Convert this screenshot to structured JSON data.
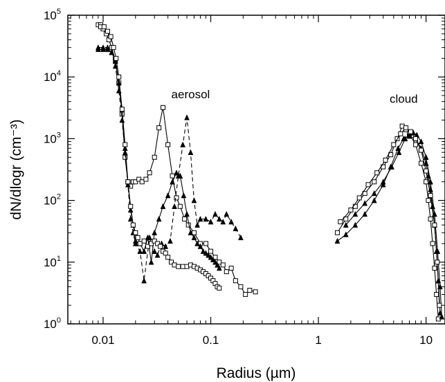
{
  "chart_data": {
    "type": "line",
    "xlabel": "Radius (µm)",
    "ylabel": "dN/dlogr (cm⁻³)",
    "x_scale": "log",
    "y_scale": "log",
    "xlim": [
      0.0047,
      15
    ],
    "ylim": [
      1,
      100000
    ],
    "x_ticks": [
      {
        "value": 0.01,
        "label": "0.01"
      },
      {
        "value": 0.1,
        "label": "0.1"
      },
      {
        "value": 1,
        "label": "1"
      },
      {
        "value": 10,
        "label": "10"
      }
    ],
    "y_ticks": [
      {
        "value": 1,
        "base": "10",
        "exp": "0"
      },
      {
        "value": 10,
        "base": "10",
        "exp": "1"
      },
      {
        "value": 100,
        "base": "10",
        "exp": "2"
      },
      {
        "value": 1000,
        "base": "10",
        "exp": "3"
      },
      {
        "value": 10000,
        "base": "10",
        "exp": "4"
      },
      {
        "value": 100000,
        "base": "10",
        "exp": "5"
      }
    ],
    "annotations": [
      {
        "text": "aerosol",
        "x": 0.065,
        "y": 4500
      },
      {
        "text": "cloud",
        "x": 6.2,
        "y": 3800
      }
    ],
    "series": [
      {
        "marker": "square",
        "dash": "solid",
        "x": [
          0.009,
          0.0095,
          0.01,
          0.0107,
          0.0113,
          0.012,
          0.013,
          0.014,
          0.015,
          0.016,
          0.017,
          0.018,
          0.019,
          0.02,
          0.0215,
          0.023,
          0.025,
          0.027,
          0.03,
          0.033,
          0.036,
          0.04,
          0.044,
          0.048,
          0.052,
          0.057,
          0.062,
          0.07,
          0.08,
          0.09,
          0.1,
          0.11,
          0.12,
          0.13,
          0.14,
          0.155,
          0.17,
          0.19,
          0.21,
          0.23,
          0.26
        ],
        "y": [
          70000,
          70000,
          60000,
          50000,
          40000,
          30000,
          18000,
          8000,
          2500,
          500,
          200,
          170,
          200,
          200,
          220,
          200,
          220,
          280,
          500,
          1500,
          3200,
          800,
          250,
          110,
          80,
          50,
          40,
          30,
          20,
          20,
          15,
          12,
          10,
          9,
          7,
          8,
          5,
          4,
          3,
          3.5,
          3.3
        ]
      },
      {
        "marker": "triangle",
        "dash": "dashed",
        "x": [
          0.009,
          0.01,
          0.011,
          0.012,
          0.013,
          0.014,
          0.015,
          0.016,
          0.017,
          0.018,
          0.019,
          0.02,
          0.022,
          0.024,
          0.027,
          0.03,
          0.032,
          0.035,
          0.038,
          0.042,
          0.046,
          0.05,
          0.055,
          0.06,
          0.065,
          0.07,
          0.075,
          0.08,
          0.09,
          0.1,
          0.11,
          0.12,
          0.13,
          0.14,
          0.155,
          0.17,
          0.19
        ],
        "y": [
          30000,
          30000,
          30000,
          25000,
          15000,
          6000,
          2000,
          600,
          180,
          50,
          30,
          20,
          15,
          5,
          25,
          15,
          13,
          20,
          18,
          22,
          80,
          250,
          800,
          2200,
          600,
          100,
          40,
          50,
          50,
          45,
          60,
          50,
          45,
          60,
          45,
          35,
          25
        ]
      },
      {
        "marker": "triangle",
        "dash": "solid",
        "x": [
          0.009,
          0.01,
          0.011,
          0.012,
          0.013,
          0.014,
          0.015,
          0.016,
          0.017,
          0.018,
          0.019,
          0.02,
          0.022,
          0.024,
          0.026,
          0.028,
          0.03,
          0.033,
          0.036,
          0.04,
          0.044,
          0.048,
          0.052,
          0.056,
          0.06,
          0.065,
          0.07,
          0.075,
          0.08,
          0.085,
          0.09,
          0.095,
          0.1,
          0.105,
          0.11,
          0.115,
          0.12
        ],
        "y": [
          28000,
          28000,
          28000,
          25000,
          18000,
          8000,
          3000,
          700,
          200,
          70,
          40,
          22,
          20,
          15,
          25,
          10,
          30,
          50,
          80,
          120,
          200,
          280,
          250,
          120,
          60,
          30,
          25,
          20,
          18,
          15,
          14,
          13,
          12,
          11,
          10,
          9,
          8
        ]
      },
      {
        "marker": "square",
        "dash": "solid",
        "x": [
          0.0095,
          0.0102,
          0.011,
          0.0118,
          0.0125,
          0.0132,
          0.014,
          0.015,
          0.016,
          0.017,
          0.018,
          0.019,
          0.02,
          0.021,
          0.022,
          0.024,
          0.026,
          0.028,
          0.03,
          0.032,
          0.034,
          0.036,
          0.038,
          0.04,
          0.043,
          0.046,
          0.05,
          0.055,
          0.06,
          0.065,
          0.07,
          0.075,
          0.08,
          0.085,
          0.09,
          0.095,
          0.1,
          0.105,
          0.11,
          0.115,
          0.12
        ],
        "y": [
          65000,
          65000,
          55000,
          45000,
          30000,
          20000,
          10000,
          3000,
          800,
          200,
          80,
          40,
          30,
          25,
          20,
          22,
          18,
          20,
          22,
          20,
          18,
          15,
          14,
          12,
          10,
          9,
          8.5,
          8.5,
          8.5,
          9,
          8.5,
          8,
          7.5,
          7,
          6.5,
          6,
          5.5,
          5,
          4.5,
          4,
          3.8
        ]
      },
      {
        "marker": "triangle",
        "dash": "solid",
        "x": [
          1.5,
          1.8,
          2.2,
          2.7,
          3.3,
          4.0,
          4.7,
          5.5,
          6.2,
          7.0,
          8.0,
          9.0,
          10.0,
          10.5,
          11.0,
          11.5,
          12.0,
          12.5,
          13.0,
          13.5
        ],
        "y": [
          22,
          28,
          40,
          60,
          100,
          180,
          350,
          700,
          1000,
          1100,
          1000,
          700,
          400,
          250,
          150,
          80,
          40,
          15,
          5,
          1.5
        ]
      },
      {
        "marker": "square",
        "dash": "solid",
        "x": [
          1.5,
          1.8,
          2.2,
          2.7,
          3.3,
          4.0,
          4.7,
          5.4,
          6.0,
          6.5,
          7.0,
          8.0,
          9.0,
          10.0,
          10.5,
          11.0,
          11.5,
          12.0,
          12.5,
          13.0
        ],
        "y": [
          30,
          50,
          80,
          130,
          200,
          350,
          550,
          1000,
          1600,
          1400,
          1200,
          800,
          400,
          200,
          100,
          50,
          20,
          8,
          3,
          1.2
        ]
      },
      {
        "marker": "triangle",
        "dash": "solid",
        "x": [
          1.8,
          2.2,
          2.7,
          3.3,
          4.0,
          4.8,
          5.6,
          6.4,
          7.0,
          7.6,
          8.2,
          9.0,
          10.0,
          11.0,
          12.0,
          12.8,
          13.5,
          14.0
        ],
        "y": [
          40,
          60,
          90,
          130,
          200,
          350,
          600,
          1000,
          1200,
          1250,
          1150,
          900,
          500,
          200,
          60,
          15,
          4,
          1.3
        ]
      },
      {
        "marker": "square",
        "dash": "solid",
        "x": [
          1.6,
          2.0,
          2.4,
          2.9,
          3.5,
          4.2,
          5.0,
          5.8,
          6.5,
          7.2,
          8.0,
          9.0,
          10.0,
          11.0,
          12.0,
          12.7,
          13.3
        ],
        "y": [
          45,
          70,
          110,
          180,
          280,
          450,
          800,
          1200,
          1500,
          1300,
          1000,
          650,
          300,
          120,
          40,
          10,
          2
        ]
      }
    ]
  }
}
